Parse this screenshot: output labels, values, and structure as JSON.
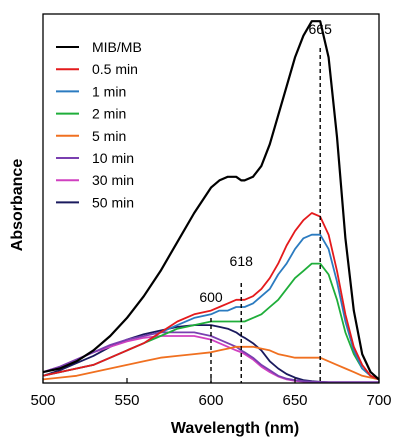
{
  "chart_data": {
    "type": "line",
    "title": "",
    "xlabel": "Wavelength (nm)",
    "ylabel": "Absorbance",
    "xlim": [
      500,
      700
    ],
    "ylim": [
      0,
      1.02
    ],
    "x_ticks": [
      "500",
      "550",
      "600",
      "650",
      "700"
    ],
    "y_ticks_shown": false,
    "grid": false,
    "legend_position": "top-left",
    "x": [
      500,
      510,
      520,
      530,
      540,
      550,
      560,
      570,
      580,
      590,
      600,
      605,
      610,
      615,
      618,
      620,
      625,
      630,
      635,
      640,
      645,
      650,
      655,
      660,
      665,
      670,
      675,
      680,
      685,
      690,
      695,
      700
    ],
    "series": [
      {
        "name": "MIB/MB",
        "color": "#000000",
        "values": [
          0.03,
          0.04,
          0.06,
          0.09,
          0.13,
          0.18,
          0.24,
          0.31,
          0.39,
          0.47,
          0.54,
          0.56,
          0.57,
          0.57,
          0.56,
          0.56,
          0.57,
          0.6,
          0.66,
          0.74,
          0.82,
          0.9,
          0.96,
          1.0,
          1.0,
          0.9,
          0.68,
          0.4,
          0.2,
          0.08,
          0.03,
          0.01
        ]
      },
      {
        "name": "0.5 min",
        "color": "#e41a1c",
        "values": [
          0.02,
          0.03,
          0.04,
          0.05,
          0.07,
          0.09,
          0.11,
          0.14,
          0.17,
          0.19,
          0.2,
          0.21,
          0.22,
          0.23,
          0.23,
          0.23,
          0.24,
          0.26,
          0.29,
          0.33,
          0.38,
          0.42,
          0.45,
          0.47,
          0.46,
          0.41,
          0.31,
          0.19,
          0.1,
          0.05,
          0.02,
          0.01
        ]
      },
      {
        "name": "1 min",
        "color": "#2b7bc0",
        "values": [
          0.02,
          0.03,
          0.04,
          0.05,
          0.07,
          0.09,
          0.11,
          0.14,
          0.16,
          0.18,
          0.19,
          0.2,
          0.2,
          0.21,
          0.21,
          0.21,
          0.22,
          0.24,
          0.26,
          0.3,
          0.33,
          0.37,
          0.4,
          0.41,
          0.41,
          0.37,
          0.28,
          0.17,
          0.09,
          0.04,
          0.02,
          0.01
        ]
      },
      {
        "name": "2 min",
        "color": "#1fae3a",
        "values": [
          0.02,
          0.03,
          0.04,
          0.05,
          0.07,
          0.09,
          0.11,
          0.13,
          0.15,
          0.16,
          0.17,
          0.17,
          0.17,
          0.17,
          0.17,
          0.17,
          0.18,
          0.19,
          0.21,
          0.23,
          0.26,
          0.29,
          0.31,
          0.33,
          0.33,
          0.3,
          0.23,
          0.14,
          0.08,
          0.04,
          0.02,
          0.01
        ]
      },
      {
        "name": "5 min",
        "color": "#f07020",
        "values": [
          0.01,
          0.015,
          0.02,
          0.03,
          0.04,
          0.05,
          0.06,
          0.07,
          0.075,
          0.08,
          0.085,
          0.09,
          0.095,
          0.1,
          0.1,
          0.1,
          0.1,
          0.095,
          0.09,
          0.08,
          0.075,
          0.07,
          0.07,
          0.07,
          0.07,
          0.06,
          0.05,
          0.04,
          0.03,
          0.02,
          0.015,
          0.01
        ]
      },
      {
        "name": "10 min",
        "color": "#7a3fb0",
        "values": [
          0.03,
          0.045,
          0.065,
          0.085,
          0.105,
          0.12,
          0.13,
          0.14,
          0.14,
          0.14,
          0.13,
          0.12,
          0.11,
          0.1,
          0.09,
          0.085,
          0.07,
          0.05,
          0.035,
          0.02,
          0.012,
          0.008,
          0.005,
          0.004,
          0.003,
          0.002,
          0.002,
          0.002,
          0.002,
          0.002,
          0.002,
          0.002
        ]
      },
      {
        "name": "30 min",
        "color": "#d040c0",
        "values": [
          0.03,
          0.045,
          0.065,
          0.085,
          0.1,
          0.115,
          0.125,
          0.13,
          0.13,
          0.13,
          0.12,
          0.11,
          0.1,
          0.09,
          0.085,
          0.08,
          0.065,
          0.045,
          0.03,
          0.018,
          0.01,
          0.006,
          0.004,
          0.003,
          0.002,
          0.002,
          0.002,
          0.002,
          0.002,
          0.002,
          0.002,
          0.002
        ]
      },
      {
        "name": "50 min",
        "color": "#1a1a5e",
        "values": [
          0.02,
          0.035,
          0.055,
          0.075,
          0.1,
          0.12,
          0.135,
          0.145,
          0.155,
          0.16,
          0.16,
          0.155,
          0.15,
          0.14,
          0.13,
          0.125,
          0.11,
          0.09,
          0.06,
          0.04,
          0.025,
          0.015,
          0.008,
          0.005,
          0.003,
          0.002,
          0.002,
          0.002,
          0.002,
          0.002,
          0.002,
          0.002
        ]
      }
    ],
    "annotations": [
      {
        "text": "665",
        "x": 665,
        "y": 1.0
      },
      {
        "text": "618",
        "x": 618,
        "y": 0.23
      },
      {
        "text": "600",
        "x": 600,
        "y": 0.2
      }
    ]
  }
}
